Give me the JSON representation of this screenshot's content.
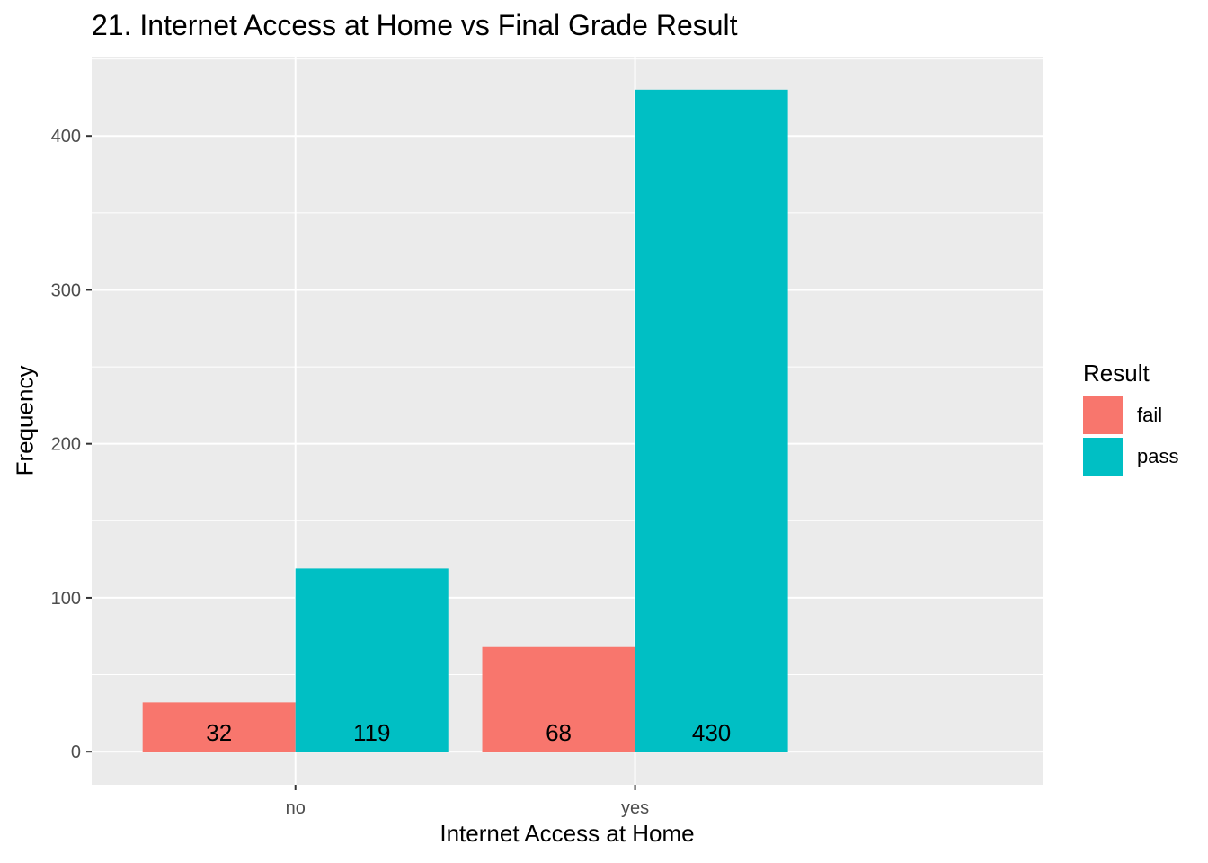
{
  "chart_data": {
    "type": "bar",
    "title": "21. Internet Access at Home vs Final Grade Result",
    "xlabel": "Internet Access at Home",
    "ylabel": "Frequency",
    "categories": [
      "no",
      "yes"
    ],
    "series": [
      {
        "name": "fail",
        "values": [
          32,
          68
        ],
        "color": "#F8766D"
      },
      {
        "name": "pass",
        "values": [
          119,
          430
        ],
        "color": "#00BFC4"
      }
    ],
    "ylim": [
      -21.5,
      451.5
    ],
    "yticks": [
      0,
      100,
      200,
      300,
      400
    ],
    "grid": true,
    "legend": {
      "title": "Result",
      "position": "right"
    },
    "panel_background": "#EBEBEB",
    "data_labels": true
  }
}
